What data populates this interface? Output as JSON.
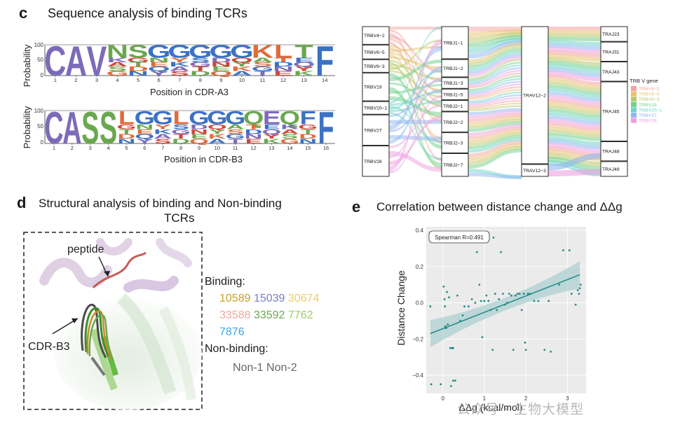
{
  "panel_c": {
    "letter": "c",
    "title": "Sequence analysis of binding TCRs",
    "logo_a3": {
      "ylabel": "Probability",
      "yticks": [
        "100",
        "50",
        "0"
      ],
      "xlabel": "Position in CDR-A3",
      "positions": [
        "1",
        "2",
        "3",
        "4",
        "5",
        "6",
        "7",
        "8",
        "9",
        "10",
        "11",
        "12",
        "13",
        "14"
      ],
      "top_letters": [
        "C",
        "A",
        "V",
        "N",
        "S",
        "G",
        "G",
        "G",
        "G",
        "G",
        "K",
        "L",
        "T",
        "F"
      ]
    },
    "logo_b3": {
      "ylabel": "Probability",
      "yticks": [
        "100",
        "50",
        "0"
      ],
      "xlabel": "Position in CDR-B3",
      "positions": [
        "1",
        "2",
        "3",
        "4",
        "5",
        "6",
        "7",
        "8",
        "9",
        "10",
        "11",
        "12",
        "13",
        "14",
        "15",
        "16"
      ],
      "top_letters": [
        "C",
        "A",
        "S",
        "S",
        "L",
        "G",
        "G",
        "L",
        "G",
        "G",
        "G",
        "Q",
        "E",
        "Q",
        "F",
        "F"
      ]
    }
  },
  "sankey": {
    "trbv": [
      "TRBV4−2",
      "TRBV6−5",
      "TRBV6−3",
      "TRBV19",
      "TRBV20−1",
      "TRBV27",
      "TRBV28"
    ],
    "trbj": [
      "TRBJ1−1",
      "TRBJ1−2",
      "TRBJ1−3",
      "TRBJ1−5",
      "TRBJ2−1",
      "TRBJ2−2",
      "TRBJ2−3",
      "TRBJ2−7"
    ],
    "trav": [
      "TRAV12−2",
      "TRAV12−3"
    ],
    "traj": [
      "TRAJ23",
      "TRAJ31",
      "TRAJ43",
      "TRAJ45",
      "TRAJ48",
      "TRAJ49"
    ],
    "legend_title": "TRB V gene",
    "legend_items": [
      {
        "label": "TRBV4−2",
        "color": "#f4a3a0"
      },
      {
        "label": "TRBV6−5",
        "color": "#e8c16e"
      },
      {
        "label": "TRBV6−3",
        "color": "#b7c96a"
      },
      {
        "label": "TRBV19",
        "color": "#6fd08c"
      },
      {
        "label": "TRBV20−1",
        "color": "#6fd3c8"
      },
      {
        "label": "TRBV27",
        "color": "#8fb6f0"
      },
      {
        "label": "TRBV28",
        "color": "#ee9fe0"
      }
    ]
  },
  "panel_d": {
    "letter": "d",
    "title_line1": "Structural analysis of binding and Non-binding",
    "title_line2": "TCRs",
    "label_peptide": "peptide",
    "label_cdr": "CDR-B3",
    "binding_title": "Binding:",
    "binding_items": [
      {
        "text": "10589",
        "color": "#c9a227"
      },
      {
        "text": "15039",
        "color": "#7b7ec4"
      },
      {
        "text": "30674",
        "color": "#f2cf5a"
      },
      {
        "text": "33588",
        "color": "#f0a8a0"
      },
      {
        "text": "33592",
        "color": "#6aa84f"
      },
      {
        "text": "7762",
        "color": "#9ccc65"
      },
      {
        "text": "7876",
        "color": "#3ba8e0"
      }
    ],
    "nonbinding_title": "Non-binding:",
    "nonbinding_items": [
      {
        "text": "Non-1",
        "color": "#666666"
      },
      {
        "text": "Non-2",
        "color": "#666666"
      }
    ]
  },
  "panel_e": {
    "letter": "e",
    "title": "Correlation between distance change and ΔΔg",
    "annotation": "Spearman R=0.491",
    "chart_data": {
      "type": "scatter",
      "xlabel": "ΔΔg (kcal/mol)",
      "ylabel": "Distance Change",
      "xlim": [
        -0.4,
        3.45
      ],
      "ylim": [
        -0.5,
        0.42
      ],
      "xticks": [
        0,
        1,
        2,
        3
      ],
      "yticks": [
        -0.4,
        -0.2,
        0.0,
        0.2,
        0.4
      ],
      "ytick_labels": [
        "−0.4",
        "−0.2",
        "0.0",
        "0.2",
        "0.4"
      ],
      "fit": {
        "x": [
          -0.3,
          3.3
        ],
        "y": [
          -0.17,
          0.155
        ]
      },
      "points": [
        [
          -0.3,
          -0.02
        ],
        [
          -0.28,
          -0.45
        ],
        [
          -0.05,
          -0.45
        ],
        [
          0.02,
          0.09
        ],
        [
          0.04,
          0.02
        ],
        [
          0.05,
          -0.02
        ],
        [
          0.06,
          -0.13
        ],
        [
          0.08,
          -0.14
        ],
        [
          0.1,
          0.06
        ],
        [
          0.12,
          -0.12
        ],
        [
          0.15,
          0.03
        ],
        [
          0.18,
          -0.25
        ],
        [
          0.22,
          -0.25
        ],
        [
          0.25,
          -0.25
        ],
        [
          0.2,
          -0.46
        ],
        [
          0.25,
          -0.43
        ],
        [
          0.3,
          -0.43
        ],
        [
          0.35,
          0.04
        ],
        [
          0.42,
          -0.1
        ],
        [
          0.48,
          -0.07
        ],
        [
          0.52,
          -0.02
        ],
        [
          0.62,
          -0.02
        ],
        [
          0.7,
          0.02
        ],
        [
          0.78,
          0.0
        ],
        [
          0.82,
          0.28
        ],
        [
          0.88,
          0.1
        ],
        [
          0.92,
          0.01
        ],
        [
          0.95,
          -0.19
        ],
        [
          1.0,
          0.01
        ],
        [
          1.05,
          0.04
        ],
        [
          1.1,
          0.01
        ],
        [
          1.15,
          -0.04
        ],
        [
          1.2,
          -0.26
        ],
        [
          1.22,
          0.36
        ],
        [
          1.26,
          0.05
        ],
        [
          1.3,
          -0.04
        ],
        [
          1.35,
          0.02
        ],
        [
          1.4,
          0.28
        ],
        [
          1.45,
          0.05
        ],
        [
          1.5,
          -0.01
        ],
        [
          1.55,
          0.0
        ],
        [
          1.6,
          0.05
        ],
        [
          1.65,
          0.04
        ],
        [
          1.7,
          -0.26
        ],
        [
          1.75,
          0.04
        ],
        [
          1.8,
          0.05
        ],
        [
          1.85,
          0.05
        ],
        [
          1.9,
          -0.04
        ],
        [
          1.95,
          0.05
        ],
        [
          1.98,
          -0.22
        ],
        [
          2.0,
          -0.26
        ],
        [
          2.05,
          0.05
        ],
        [
          2.1,
          0.05
        ],
        [
          2.2,
          0.01
        ],
        [
          2.3,
          0.01
        ],
        [
          2.45,
          -0.26
        ],
        [
          2.55,
          0.01
        ],
        [
          2.6,
          -0.27
        ],
        [
          2.8,
          0.1
        ],
        [
          2.9,
          0.29
        ],
        [
          3.05,
          0.29
        ],
        [
          3.1,
          0.05
        ],
        [
          3.2,
          -0.01
        ],
        [
          3.25,
          0.07
        ],
        [
          3.28,
          0.05
        ],
        [
          3.3,
          0.08
        ],
        [
          3.32,
          0.1
        ]
      ]
    }
  },
  "watermark": "公众号 · 生物大模型"
}
